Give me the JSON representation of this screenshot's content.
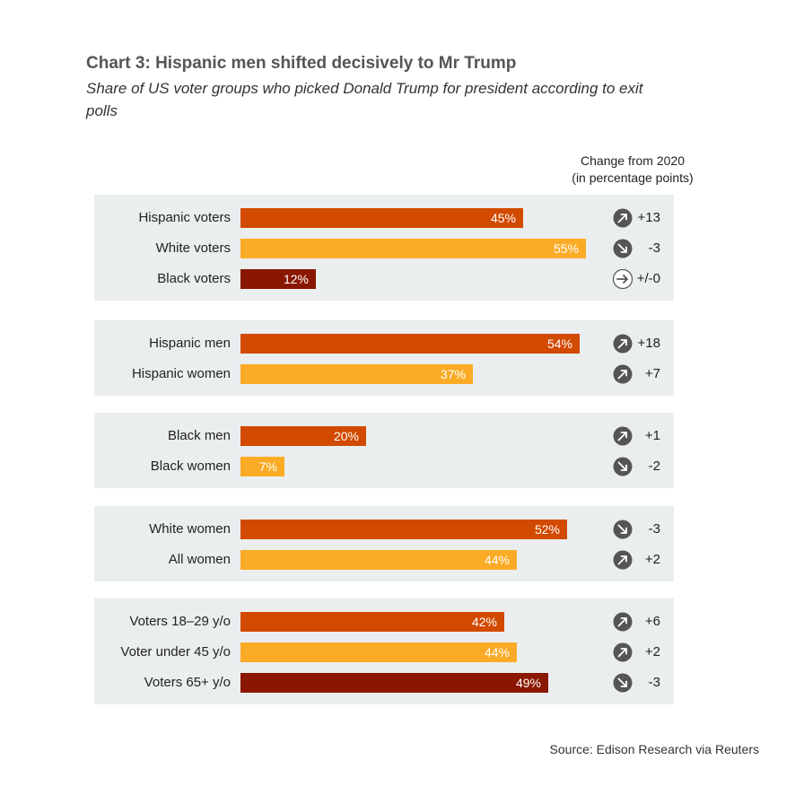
{
  "title": "Chart 3: Hispanic men shifted decisively to Mr Trump",
  "subtitle": "Share of US voter groups who picked Donald Trump for president according to exit polls",
  "change_header": {
    "line1": "Change from 2020",
    "line2": "(in percentage points)"
  },
  "source": "Source: Edison Research via Reuters",
  "colors": {
    "dark_orange": "#d24a00",
    "light_orange": "#fbab26",
    "dark_red": "#8a1700",
    "panel_bg": "#ebeeee",
    "icon_bg": "#555555"
  },
  "chart_data": {
    "type": "bar",
    "orientation": "horizontal",
    "title": "Chart 3: Hispanic men shifted decisively to Mr Trump",
    "subtitle": "Share of US voter groups who picked Donald Trump for president according to exit polls",
    "xlim": [
      0,
      70
    ],
    "unit": "%",
    "groups": [
      {
        "rows": [
          {
            "label": "Hispanic voters",
            "value": 45,
            "value_label": "45%",
            "color": "#d24a00",
            "change": 13,
            "change_label": "+13",
            "direction": "up"
          },
          {
            "label": "White voters",
            "value": 55,
            "value_label": "55%",
            "color": "#fbab26",
            "change": -3,
            "change_label": "-3",
            "direction": "down"
          },
          {
            "label": "Black voters",
            "value": 12,
            "value_label": "12%",
            "color": "#8a1700",
            "change": 0,
            "change_label": "+/-0",
            "direction": "flat"
          }
        ]
      },
      {
        "rows": [
          {
            "label": "Hispanic men",
            "value": 54,
            "value_label": "54%",
            "color": "#d24a00",
            "change": 18,
            "change_label": "+18",
            "direction": "up"
          },
          {
            "label": "Hispanic women",
            "value": 37,
            "value_label": "37%",
            "color": "#fbab26",
            "change": 7,
            "change_label": "+7",
            "direction": "up"
          }
        ]
      },
      {
        "rows": [
          {
            "label": "Black men",
            "value": 20,
            "value_label": "20%",
            "color": "#d24a00",
            "change": 1,
            "change_label": "+1",
            "direction": "up"
          },
          {
            "label": "Black women",
            "value": 7,
            "value_label": "7%",
            "color": "#fbab26",
            "change": -2,
            "change_label": "-2",
            "direction": "down"
          }
        ]
      },
      {
        "rows": [
          {
            "label": "White  women",
            "value": 52,
            "value_label": "52%",
            "color": "#d24a00",
            "change": -3,
            "change_label": "-3",
            "direction": "down"
          },
          {
            "label": "All women",
            "value": 44,
            "value_label": "44%",
            "color": "#fbab26",
            "change": 2,
            "change_label": "+2",
            "direction": "up"
          }
        ]
      },
      {
        "rows": [
          {
            "label": "Voters 18–29 y/o",
            "value": 42,
            "value_label": "42%",
            "color": "#d24a00",
            "change": 6,
            "change_label": "+6",
            "direction": "up"
          },
          {
            "label": "Voter under 45 y/o",
            "value": 44,
            "value_label": "44%",
            "color": "#fbab26",
            "change": 2,
            "change_label": "+2",
            "direction": "up"
          },
          {
            "label": "Voters 65+ y/o",
            "value": 49,
            "value_label": "49%",
            "color": "#8a1700",
            "change": -3,
            "change_label": "-3",
            "direction": "down"
          }
        ]
      }
    ]
  }
}
